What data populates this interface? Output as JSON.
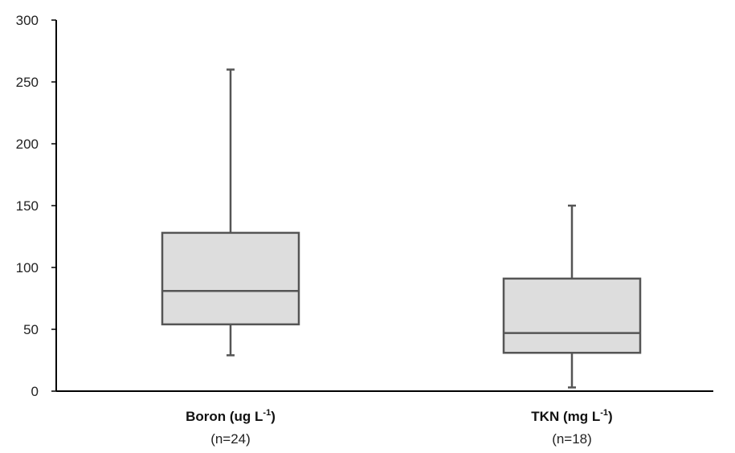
{
  "chart_data": {
    "type": "boxplot",
    "ylim": [
      0,
      300
    ],
    "yticks": [
      0,
      50,
      100,
      150,
      200,
      250,
      300
    ],
    "grid": false,
    "legend": "none",
    "colors": {
      "box_fill": "#dddddd",
      "box_stroke": "#555555",
      "axis": "#000000"
    },
    "series": [
      {
        "label": "Boron (ug L",
        "label_sup": "-1",
        "label_close": ")",
        "n_label": "(n=24)",
        "min": 29,
        "q1": 54,
        "median": 81,
        "q3": 128,
        "max": 260
      },
      {
        "label": "TKN (mg L",
        "label_sup": "-1",
        "label_close": ")",
        "n_label": "(n=18)",
        "min": 3,
        "q1": 31,
        "median": 47,
        "q3": 91,
        "max": 150
      }
    ]
  }
}
